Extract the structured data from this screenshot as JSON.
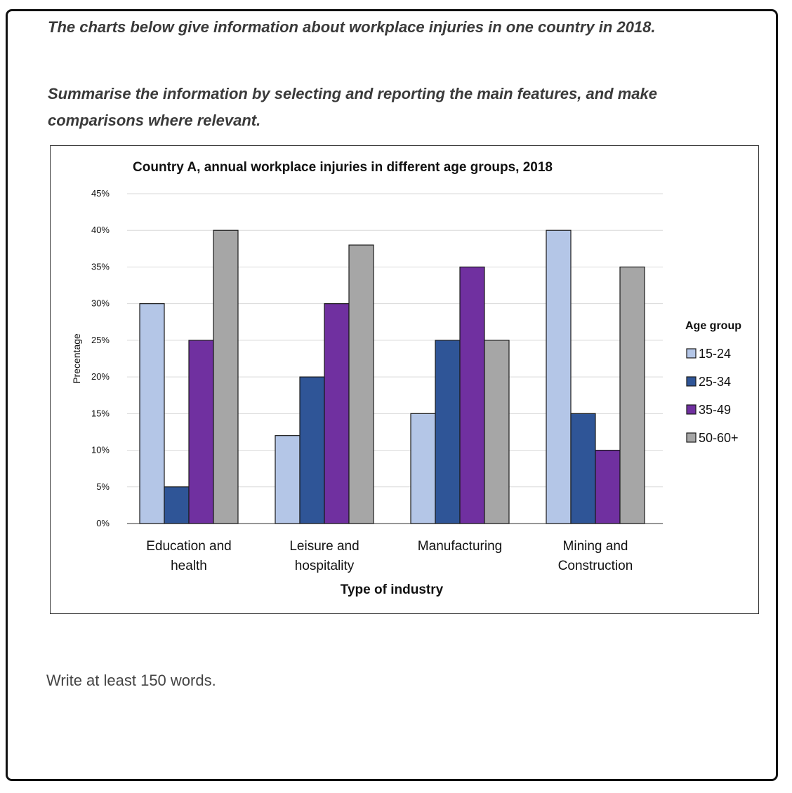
{
  "prompt": {
    "line1": "The charts below give information about workplace injuries in one country in 2018.",
    "line2": "Summarise the information by selecting and reporting the main features, and make comparisons where relevant."
  },
  "footer": "Write at least 150 words.",
  "colors": {
    "s1524": "#b4c6e7",
    "s2534": "#2f5597",
    "s3549": "#7030a0",
    "s5060": "#a6a6a6",
    "grid": "#d9d9d9",
    "bar_border": "#1a1a1a"
  },
  "chart_data": {
    "type": "bar",
    "title": "Country A, annual workplace injuries in different age groups, 2018",
    "xlabel": "Type of industry",
    "ylabel": "Precentage",
    "categories": [
      [
        "Education and",
        "health"
      ],
      [
        "Leisure and",
        "hospitality"
      ],
      [
        "Manufacturing"
      ],
      [
        "Mining and",
        "Construction"
      ]
    ],
    "series": [
      {
        "name": "15-24",
        "values": [
          30,
          12,
          15,
          40
        ]
      },
      {
        "name": "25-34",
        "values": [
          5,
          20,
          25,
          15
        ]
      },
      {
        "name": "35-49",
        "values": [
          25,
          30,
          35,
          10
        ]
      },
      {
        "name": "50-60+",
        "values": [
          40,
          38,
          25,
          35
        ]
      }
    ],
    "ylim": [
      0,
      45
    ],
    "yticks": [
      0,
      5,
      10,
      15,
      20,
      25,
      30,
      35,
      40,
      45
    ],
    "ytick_suffix": "%",
    "grid": true,
    "legend": {
      "title": "Age group",
      "position": "right"
    }
  }
}
